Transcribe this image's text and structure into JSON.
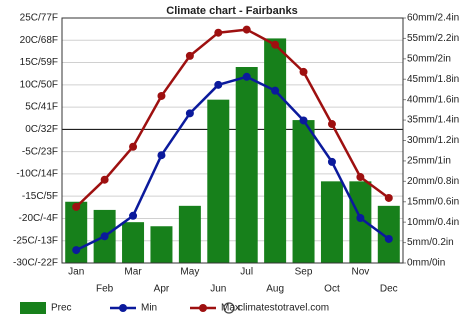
{
  "chart_data": {
    "type": "combo",
    "title": "Climate chart - Fairbanks",
    "categories": [
      "Jan",
      "Feb",
      "Mar",
      "Apr",
      "May",
      "Jun",
      "Jul",
      "Aug",
      "Sep",
      "Oct",
      "Nov",
      "Dec"
    ],
    "ylim": [
      -30,
      25
    ],
    "yticks": [
      {
        "value": -30,
        "label": "-30C/-22F"
      },
      {
        "value": -25,
        "label": "-25C/-13F"
      },
      {
        "value": -20,
        "label": "-20C/-4F"
      },
      {
        "value": -15,
        "label": "-15C/5F"
      },
      {
        "value": -10,
        "label": "-10C/14F"
      },
      {
        "value": -5,
        "label": "-5C/23F"
      },
      {
        "value": 0,
        "label": "0C/32F"
      },
      {
        "value": 5,
        "label": "5C/41F"
      },
      {
        "value": 10,
        "label": "10C/50F"
      },
      {
        "value": 15,
        "label": "15C/59F"
      },
      {
        "value": 20,
        "label": "20C/68F"
      },
      {
        "value": 25,
        "label": "25C/77F"
      }
    ],
    "y2lim": [
      0,
      60
    ],
    "y2ticks": [
      {
        "value": 0,
        "label": "0mm/0in"
      },
      {
        "value": 5,
        "label": "5mm/0.2in"
      },
      {
        "value": 10,
        "label": "10mm/0.4in"
      },
      {
        "value": 15,
        "label": "15mm/0.6in"
      },
      {
        "value": 20,
        "label": "20mm/0.8in"
      },
      {
        "value": 25,
        "label": "25mm/1in"
      },
      {
        "value": 30,
        "label": "30mm/1.2in"
      },
      {
        "value": 35,
        "label": "35mm/1.4in"
      },
      {
        "value": 40,
        "label": "40mm/1.6in"
      },
      {
        "value": 45,
        "label": "45mm/1.8in"
      },
      {
        "value": 50,
        "label": "50mm/2in"
      },
      {
        "value": 55,
        "label": "55mm/2.2in"
      },
      {
        "value": 60,
        "label": "60mm/2.4in"
      }
    ],
    "grid": true,
    "series": [
      {
        "name": "Prec",
        "type": "bar",
        "axis": "y2",
        "color": "#17801b",
        "values": [
          15,
          13,
          10,
          9,
          14,
          40,
          48,
          55,
          35,
          20,
          20,
          14
        ]
      },
      {
        "name": "Min",
        "type": "line",
        "color": "#0b1a9c",
        "values": [
          -27.1,
          -24,
          -19.4,
          -5.8,
          3.6,
          10,
          11.8,
          8.7,
          2,
          -7.3,
          -19.9,
          -24.6
        ]
      },
      {
        "name": "Max",
        "type": "line",
        "color": "#9e1010",
        "values": [
          -17.4,
          -11.3,
          -3.9,
          7.5,
          16.5,
          21.7,
          22.4,
          19,
          12.9,
          1.2,
          -10.7,
          -15.4
        ]
      }
    ],
    "source": "climatestotravel.com"
  }
}
